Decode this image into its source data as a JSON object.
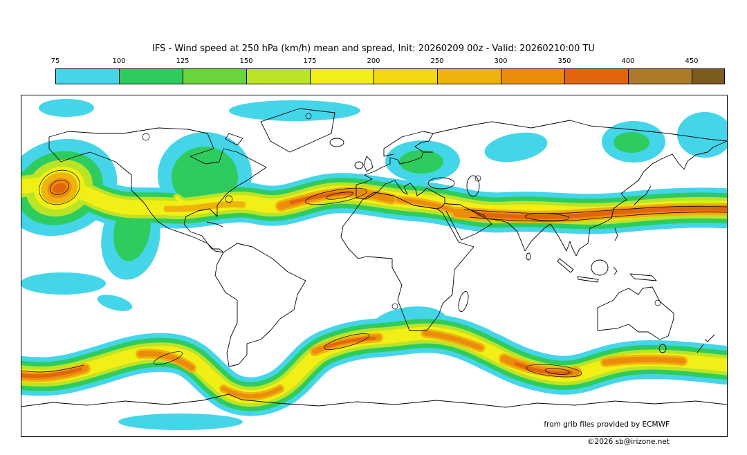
{
  "title": "IFS - Wind speed at 250 hPa (km/h) mean and spread, Init: 20260209 00z - Valid: 20260210:00 TU",
  "colorbar": {
    "tick_labels": [
      "75",
      "100",
      "125",
      "150",
      "175",
      "200",
      "250",
      "300",
      "350",
      "400",
      "450"
    ],
    "colors": [
      "#45d5e8",
      "#2ecc5e",
      "#6ad43c",
      "#bbe426",
      "#f2ef16",
      "#f2d713",
      "#efb30e",
      "#ec8c0c",
      "#e2650e",
      "#ad7a2b",
      "#7d5a1e"
    ]
  },
  "attribution": {
    "source": "from grib files provided by ECMWF",
    "copyright": "©2026 sb@irizone.net"
  },
  "chart_data": {
    "type": "heatmap",
    "subtype": "filled-contour world map",
    "model": "IFS",
    "variable": "Wind speed at 250 hPa, ensemble mean (shading) and spread (thin black contours)",
    "units": "km/h",
    "init": "20260209 00z",
    "valid": "20260210:00 TU",
    "projection": "equirectangular, global (coastlines drawn, no land fill, no graticule)",
    "levels": [
      75,
      100,
      125,
      150,
      175,
      200,
      250,
      300,
      350,
      400,
      450
    ],
    "palette": [
      "#45d5e8",
      "#2ecc5e",
      "#6ad43c",
      "#bbe426",
      "#f2ef16",
      "#f2d713",
      "#efb30e",
      "#ec8c0c",
      "#e2650e",
      "#ad7a2b",
      "#7d5a1e"
    ],
    "legend_position": "horizontal bar above map",
    "features": [
      {
        "region": "North Pacific (~40-50N, far left of map)",
        "value_kmh": "300-350",
        "description": "Closed spiraling jet maximum, dark-orange core ringed by green/cyan and dense black spread contours"
      },
      {
        "region": "North America (~40-50N)",
        "value_kmh": "100-200",
        "description": "Moderate jet band with a cyan/green trough dipping south over central North America"
      },
      {
        "region": "Greenland / Davis Strait",
        "value_kmh": "100-175",
        "description": "Cut-off circulation, broad green area with small yellow-orange arc on its southern flank"
      },
      {
        "region": "North Atlantic (~45N)",
        "value_kmh": "250-350",
        "description": "Strong orange jet streak crossing the Atlantic toward western Europe"
      },
      {
        "region": "Asia (~35-45N)",
        "value_kmh": "250-350",
        "description": "Long intense subtropical jet spanning the continent to the NW Pacific, flanked by black spread contours"
      },
      {
        "region": "Arctic and Europe",
        "value_kmh": "75-125",
        "description": "Scattered cyan patches with small green cores (Scandinavia, Siberia, Bering region)"
      },
      {
        "region": "Southern Hemisphere storm track (~45-60S)",
        "value_kmh": "100-300",
        "description": "Continuous wavy circumpolar band with embedded orange maxima: SE Pacific, east of South America, South Atlantic, south Indian Ocean, south of Australia, South Pacific"
      },
      {
        "region": "Tropics (Africa / Indian Ocean)",
        "value_kmh": "75-100",
        "description": "Weak isolated cyan patches"
      }
    ]
  }
}
